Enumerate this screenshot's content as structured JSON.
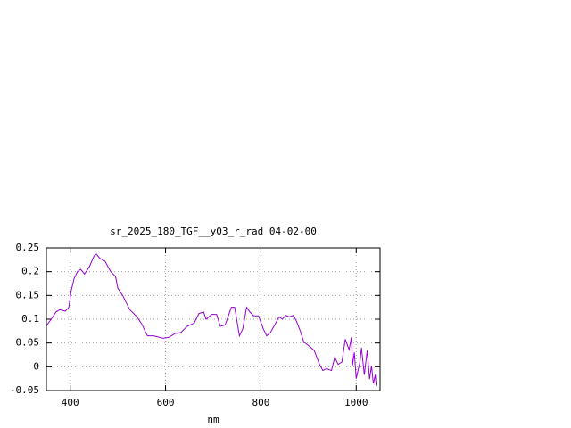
{
  "chart_data": {
    "type": "line",
    "title": "sr_2025_180_TGF__y03_r_rad 04-02-00",
    "xlabel": "nm",
    "x": [
      350,
      360,
      370,
      378,
      390,
      397,
      402,
      408,
      415,
      422,
      430,
      440,
      450,
      455,
      462,
      473,
      485,
      495,
      500,
      510,
      525,
      540,
      550,
      562,
      575,
      595,
      607,
      620,
      632,
      645,
      660,
      670,
      680,
      685,
      697,
      707,
      715,
      725,
      738,
      745,
      755,
      762,
      770,
      777,
      785,
      795,
      805,
      812,
      820,
      830,
      838,
      845,
      852,
      860,
      868,
      875,
      882,
      890,
      902,
      912,
      923,
      930,
      938,
      948,
      955,
      962,
      970,
      977,
      985,
      990,
      992,
      996,
      1000,
      1008,
      1011,
      1017,
      1023,
      1028,
      1032,
      1036,
      1040,
      1042
    ],
    "series": [
      {
        "name": "sr_2025_180_TGF__y03_r_rad",
        "color": "#9400d3",
        "values": [
          0.086,
          0.1,
          0.115,
          0.12,
          0.117,
          0.125,
          0.16,
          0.185,
          0.2,
          0.205,
          0.195,
          0.21,
          0.233,
          0.237,
          0.228,
          0.222,
          0.2,
          0.19,
          0.165,
          0.15,
          0.12,
          0.105,
          0.09,
          0.065,
          0.065,
          0.06,
          0.062,
          0.07,
          0.072,
          0.085,
          0.092,
          0.112,
          0.115,
          0.1,
          0.11,
          0.11,
          0.085,
          0.088,
          0.125,
          0.125,
          0.065,
          0.08,
          0.125,
          0.115,
          0.107,
          0.107,
          0.08,
          0.065,
          0.072,
          0.09,
          0.105,
          0.1,
          0.108,
          0.105,
          0.108,
          0.095,
          0.077,
          0.052,
          0.043,
          0.034,
          0.005,
          -0.008,
          -0.004,
          -0.008,
          0.02,
          0.005,
          0.01,
          0.058,
          0.036,
          0.062,
          0.002,
          0.03,
          -0.025,
          0.011,
          0.04,
          -0.017,
          0.034,
          -0.026,
          0.002,
          -0.035,
          -0.017,
          -0.04
        ]
      }
    ],
    "xlim": [
      350,
      1050
    ],
    "xticks": [
      400,
      600,
      800,
      1000
    ],
    "ylim": [
      -0.05,
      0.25
    ],
    "yticks": [
      -0.05,
      0,
      0.05,
      0.1,
      0.15,
      0.2,
      0.25
    ],
    "grid": true
  }
}
